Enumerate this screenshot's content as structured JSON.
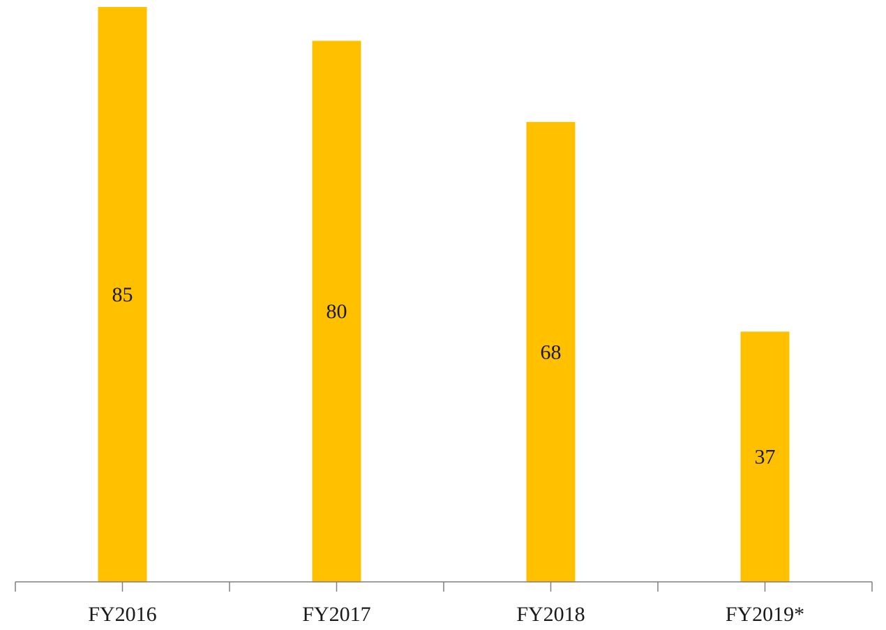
{
  "chart_data": {
    "type": "bar",
    "categories": [
      "FY2016",
      "FY2017",
      "FY2018",
      "FY2019*"
    ],
    "values": [
      85,
      80,
      68,
      37
    ],
    "data_labels": [
      "85",
      "80",
      "68",
      "37"
    ],
    "ylim": [
      0,
      85
    ],
    "grid": false,
    "legend": "none",
    "bar_color": "#FFC000",
    "axis_color": "#7f7f7f"
  }
}
